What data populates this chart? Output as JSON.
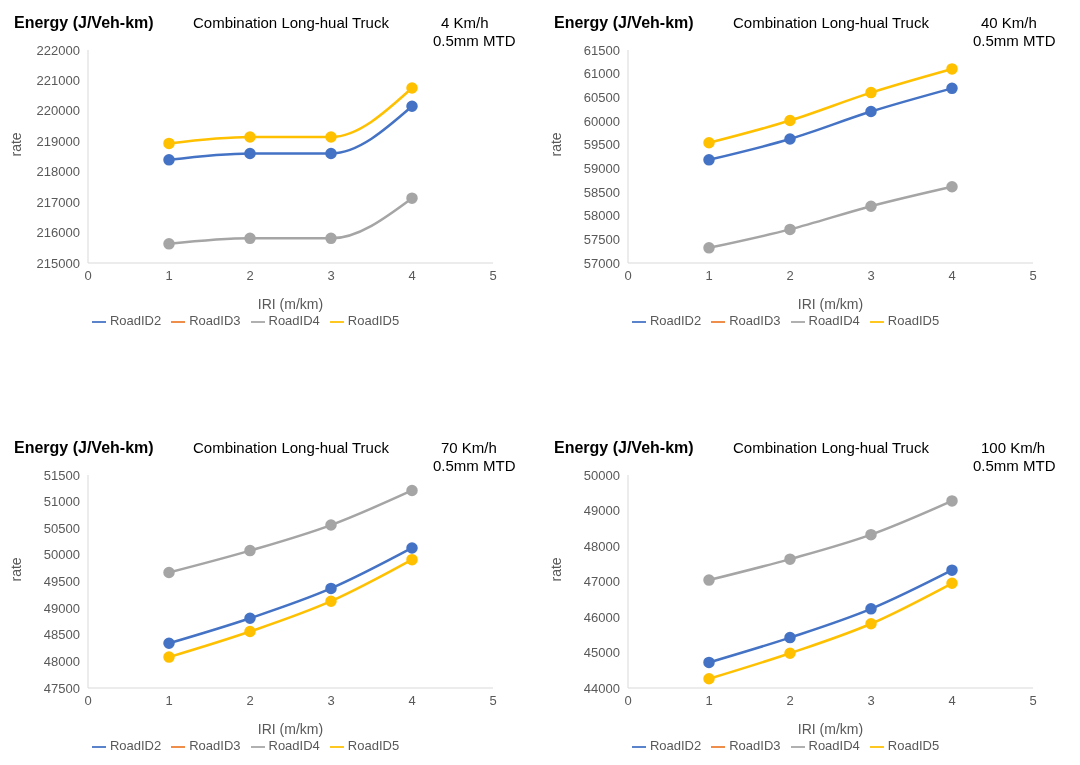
{
  "chart_data": [
    {
      "type": "line",
      "title": "Combination Long-hual Truck",
      "annotations": [
        "Energy (J/Veh-km)",
        "4 Km/h",
        "0.5mm MTD"
      ],
      "xlabel": "IRI (m/km)",
      "ylabel": "rate",
      "x": [
        1,
        2,
        3,
        4
      ],
      "xlim": [
        0,
        5
      ],
      "xticks": [
        0,
        1,
        2,
        3,
        4,
        5
      ],
      "ylim": [
        215000,
        222000
      ],
      "yticks": [
        215000,
        216000,
        217000,
        218000,
        219000,
        220000,
        221000,
        222000
      ],
      "grid": false,
      "legend": "bottom",
      "marker": "circle",
      "series": [
        {
          "name": "RoadID2",
          "color": "#4472c4",
          "values": [
            218390,
            218600,
            218600,
            220150
          ]
        },
        {
          "name": "RoadID3",
          "color": "#ed7d31",
          "values": [
            null,
            null,
            null,
            null
          ]
        },
        {
          "name": "RoadID4",
          "color": "#a5a5a5",
          "values": [
            215630,
            215810,
            215810,
            217130
          ]
        },
        {
          "name": "RoadID5",
          "color": "#ffc000",
          "values": [
            218930,
            219140,
            219140,
            220750
          ]
        }
      ]
    },
    {
      "type": "line",
      "title": "Combination Long-hual Truck",
      "annotations": [
        "Energy (J/Veh-km)",
        "40 Km/h",
        "0.5mm MTD"
      ],
      "xlabel": "IRI (m/km)",
      "ylabel": "rate",
      "x": [
        1,
        2,
        3,
        4
      ],
      "xlim": [
        0,
        5
      ],
      "xticks": [
        0,
        1,
        2,
        3,
        4,
        5
      ],
      "ylim": [
        57000,
        61500
      ],
      "yticks": [
        57000,
        57500,
        58000,
        58500,
        59000,
        59500,
        60000,
        60500,
        61000,
        61500
      ],
      "grid": false,
      "legend": "bottom",
      "marker": "circle",
      "series": [
        {
          "name": "RoadID2",
          "color": "#4472c4",
          "values": [
            59180,
            59620,
            60200,
            60690
          ]
        },
        {
          "name": "RoadID3",
          "color": "#ed7d31",
          "values": [
            null,
            null,
            null,
            null
          ]
        },
        {
          "name": "RoadID4",
          "color": "#a5a5a5",
          "values": [
            57320,
            57710,
            58200,
            58610
          ]
        },
        {
          "name": "RoadID5",
          "color": "#ffc000",
          "values": [
            59540,
            60010,
            60600,
            61100
          ]
        }
      ]
    },
    {
      "type": "line",
      "title": "Combination Long-hual Truck",
      "annotations": [
        "Energy (J/Veh-km)",
        "70 Km/h",
        "0.5mm MTD"
      ],
      "xlabel": "IRI (m/km)",
      "ylabel": "rate",
      "x": [
        1,
        2,
        3,
        4
      ],
      "xlim": [
        0,
        5
      ],
      "xticks": [
        0,
        1,
        2,
        3,
        4,
        5
      ],
      "ylim": [
        47500,
        51500
      ],
      "yticks": [
        47500,
        48000,
        48500,
        49000,
        49500,
        50000,
        50500,
        51000,
        51500
      ],
      "grid": false,
      "legend": "bottom",
      "marker": "circle",
      "series": [
        {
          "name": "RoadID2",
          "color": "#4472c4",
          "values": [
            48340,
            48810,
            49370,
            50130
          ]
        },
        {
          "name": "RoadID3",
          "color": "#ed7d31",
          "values": [
            null,
            null,
            null,
            null
          ]
        },
        {
          "name": "RoadID4",
          "color": "#a5a5a5",
          "values": [
            49670,
            50080,
            50560,
            51210
          ]
        },
        {
          "name": "RoadID5",
          "color": "#ffc000",
          "values": [
            48080,
            48560,
            49130,
            49910
          ]
        }
      ]
    },
    {
      "type": "line",
      "title": "Combination Long-hual Truck",
      "annotations": [
        "Energy (J/Veh-km)",
        "100 Km/h",
        "0.5mm MTD"
      ],
      "xlabel": "IRI (m/km)",
      "ylabel": "rate",
      "x": [
        1,
        2,
        3,
        4
      ],
      "xlim": [
        0,
        5
      ],
      "xticks": [
        0,
        1,
        2,
        3,
        4,
        5
      ],
      "ylim": [
        44000,
        50000
      ],
      "yticks": [
        44000,
        45000,
        46000,
        47000,
        48000,
        49000,
        50000
      ],
      "grid": false,
      "legend": "bottom",
      "marker": "circle",
      "series": [
        {
          "name": "RoadID2",
          "color": "#4472c4",
          "values": [
            44720,
            45420,
            46230,
            47320
          ]
        },
        {
          "name": "RoadID3",
          "color": "#ed7d31",
          "values": [
            null,
            null,
            null,
            null
          ]
        },
        {
          "name": "RoadID4",
          "color": "#a5a5a5",
          "values": [
            47040,
            47630,
            48320,
            49270
          ]
        },
        {
          "name": "RoadID5",
          "color": "#ffc000",
          "values": [
            44260,
            44980,
            45810,
            46950
          ]
        }
      ]
    }
  ]
}
